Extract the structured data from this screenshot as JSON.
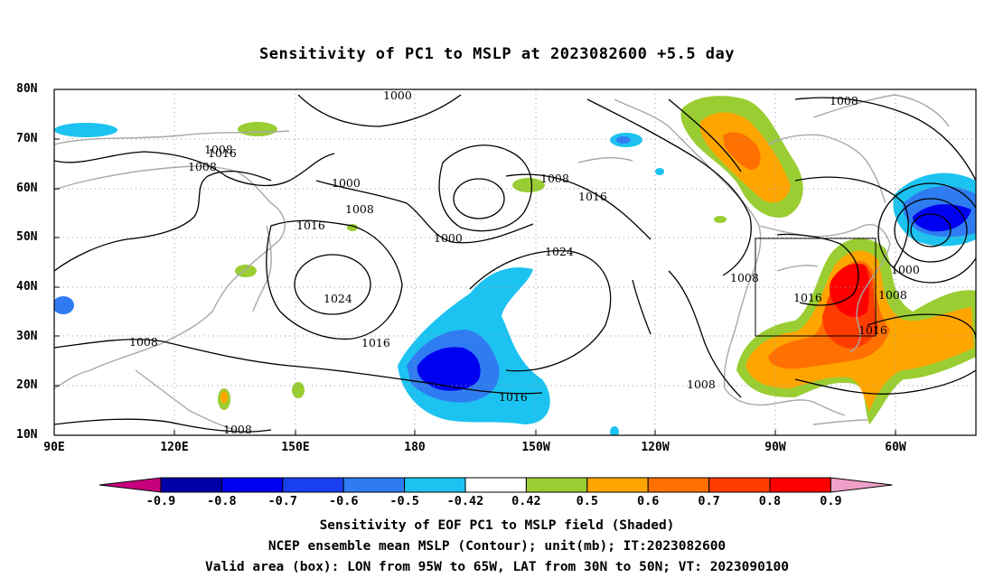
{
  "title": "Sensitivity of PC1 to MSLP at 2023082600 +5.5 day",
  "map": {
    "lat_labels": [
      "80N",
      "70N",
      "60N",
      "50N",
      "40N",
      "30N",
      "20N",
      "10N"
    ],
    "lon_labels": [
      "90E",
      "120E",
      "150E",
      "180",
      "150W",
      "120W",
      "90W",
      "60W"
    ],
    "contour_labels": [
      "1000",
      "1008",
      "1016",
      "1016",
      "1008",
      "1000",
      "1008",
      "1016",
      "1000",
      "1008",
      "1016",
      "1024",
      "1024",
      "1016",
      "1008",
      "1008",
      "1016",
      "1008",
      "1008",
      "1000",
      "1008",
      "1016",
      "1008"
    ],
    "valid_box": {
      "lon_from": "95W",
      "lon_to": "65W",
      "lat_from": "30N",
      "lat_to": "50N"
    }
  },
  "colorbar": {
    "labels": [
      "-0.9",
      "-0.8",
      "-0.7",
      "-0.6",
      "-0.5",
      "-0.42",
      "0.42",
      "0.5",
      "0.6",
      "0.7",
      "0.8",
      "0.9"
    ],
    "colors": [
      "#c8007e",
      "#0000a8",
      "#0000f0",
      "#1a3ff0",
      "#2f7cf2",
      "#1cc3f0",
      "#ffffff",
      "#9acd32",
      "#ffa500",
      "#ff7000",
      "#ff3c00",
      "#ff0000",
      "#f0a0c8"
    ]
  },
  "captions": {
    "line1": "Sensitivity of EOF PC1 to MSLP field (Shaded)",
    "line2": "NCEP ensemble mean MSLP (Contour); unit(mb); IT:2023082600",
    "line3": "Valid area (box): LON from 95W to 65W, LAT from 30N to 50N; VT: 2023090100"
  }
}
